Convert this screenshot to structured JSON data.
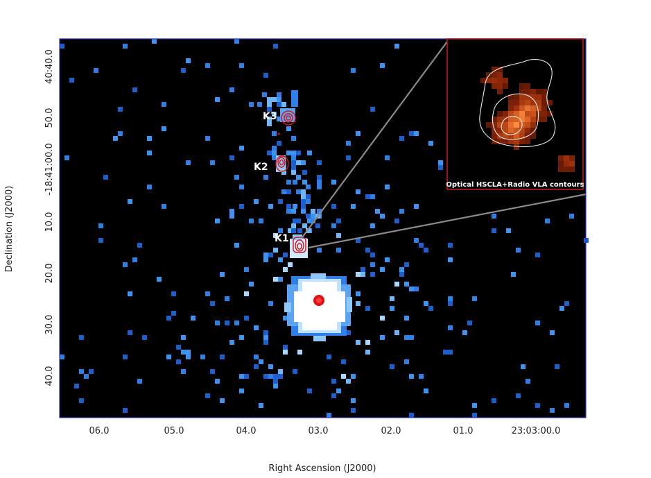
{
  "axes": {
    "xlabel": "Right Ascension (J2000)",
    "ylabel": "Declination (J2000)",
    "x_ticks": [
      "06.0",
      "05.0",
      "04.0",
      "03.0",
      "02.0",
      "01.0",
      "23:03:00.0"
    ],
    "y_ticks": [
      "40:40.0",
      "50.0",
      "-18:41:00.0",
      "10.0",
      "20.0",
      "30.0",
      "40.0"
    ]
  },
  "sources": [
    {
      "label": "K3"
    },
    {
      "label": "K2"
    },
    {
      "label": "K1"
    }
  ],
  "inset": {
    "caption": "Optical HSCLA+Radio VLA contours"
  },
  "colors": {
    "background": "#000000",
    "xray_blue": "#2f7fe8",
    "xray_light": "#a8d8ff",
    "radio_contour": "#e01010",
    "inset_border": "#c01818",
    "optical_orange": "#e8651a",
    "pointer_line": "#8a8a8a",
    "frame": "#3030c0"
  }
}
